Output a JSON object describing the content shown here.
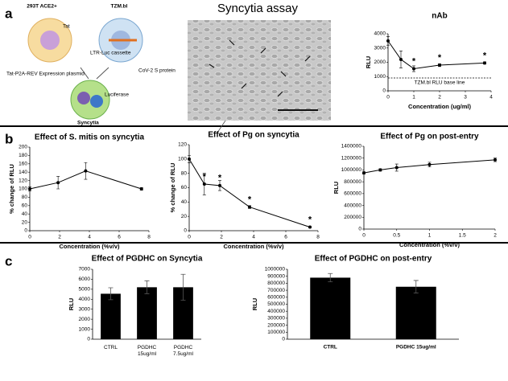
{
  "panels": [
    "a",
    "b",
    "c"
  ],
  "diagram": {
    "cell_1": "293T ACE2+",
    "cell_2": "TZM.bl",
    "tat": "Tat",
    "cassette": "LTR-Luc cassette",
    "plasmid": "Tat-P2A-REV Expression plasmid",
    "spike": "CoV-2 S protein",
    "luciferase": "Luciferase",
    "syncytia": "Syncytia"
  },
  "micrograph_title": "Syncytia assay",
  "chart_data": [
    {
      "type": "line",
      "title": "nAb",
      "x": [
        0,
        0.5,
        1,
        2,
        3.75
      ],
      "values": [
        3500,
        2200,
        1550,
        1800,
        1950
      ],
      "errors": [
        300,
        600,
        200,
        100,
        80
      ],
      "color": "#000000",
      "xlabel": "Concentration (ug/ml)",
      "ylabel": "RLU",
      "xlim": [
        0,
        4
      ],
      "xticks": [
        0,
        1,
        2,
        3,
        4
      ],
      "ylim": [
        0,
        4000
      ],
      "yticks": [
        0,
        1000,
        2000,
        3000,
        4000
      ],
      "baseline": {
        "value": 900,
        "label": "TZM.bl RLU base line"
      },
      "annotations": [
        {
          "text": "*",
          "x": 1,
          "y": 1550
        },
        {
          "text": "*",
          "x": 2,
          "y": 1800
        },
        {
          "text": "*",
          "x": 3.75,
          "y": 1950
        }
      ]
    },
    {
      "type": "line",
      "title": "Effect of S. mitis on syncytia",
      "x": [
        0,
        1.9,
        3.75,
        7.5
      ],
      "values": [
        100,
        115,
        143,
        100
      ],
      "errors": [
        5,
        15,
        20,
        3
      ],
      "color": "#000000",
      "xlabel": "Concentration (%v/v)",
      "ylabel": "% change of RLU",
      "xlim": [
        0,
        8
      ],
      "xticks": [
        0,
        2,
        4,
        6,
        8
      ],
      "ylim": [
        0,
        200
      ],
      "yticks": [
        0,
        20,
        40,
        60,
        80,
        100,
        120,
        140,
        160,
        180,
        200
      ]
    },
    {
      "type": "line",
      "title": "Effect of Pg on syncytia",
      "x": [
        0,
        0.94,
        1.9,
        3.75,
        7.5
      ],
      "values": [
        100,
        65,
        63,
        33,
        5
      ],
      "errors": [
        5,
        15,
        7,
        2,
        1
      ],
      "color": "#000000",
      "xlabel": "Concentration (%v/v)",
      "ylabel": "% change of RLU",
      "xlim": [
        0,
        8
      ],
      "xticks": [
        0,
        2,
        4,
        6,
        8
      ],
      "ylim": [
        0,
        120
      ],
      "yticks": [
        0,
        20,
        40,
        60,
        80,
        100,
        120
      ],
      "annotations": [
        {
          "text": "*",
          "x": 0.94,
          "y": 65
        },
        {
          "text": "*",
          "x": 1.9,
          "y": 63
        },
        {
          "text": "*",
          "x": 3.75,
          "y": 33
        },
        {
          "text": "*",
          "x": 7.5,
          "y": 5
        }
      ]
    },
    {
      "type": "line",
      "title": "Effect of Pg on post-entry",
      "x": [
        0,
        0.25,
        0.5,
        1,
        2
      ],
      "values": [
        950000,
        1000000,
        1040000,
        1090000,
        1170000
      ],
      "errors": [
        20000,
        20000,
        60000,
        40000,
        30000
      ],
      "color": "#000000",
      "xlabel": "Concentration (%v/v)",
      "ylabel": "RLU",
      "xlim": [
        0,
        2
      ],
      "xticks": [
        0,
        0.5,
        1,
        1.5,
        2
      ],
      "ylim": [
        0,
        1400000
      ],
      "yticks": [
        0,
        200000,
        400000,
        600000,
        800000,
        1000000,
        1200000,
        1400000
      ]
    },
    {
      "type": "bar",
      "title": "Effect of PGDHC on Syncytia",
      "categories": [
        "CTRL",
        "PGDHC 15ug/ml",
        "PGDHC 7.5ug/ml"
      ],
      "values": [
        4550,
        5200,
        5200
      ],
      "errors": [
        600,
        650,
        1300
      ],
      "color": "#000000",
      "ylabel": "RLU",
      "ylim": [
        0,
        7000
      ],
      "yticks": [
        0,
        1000,
        2000,
        3000,
        4000,
        5000,
        6000,
        7000
      ]
    },
    {
      "type": "bar",
      "title": "Effect of PGDHC on post-entry",
      "categories": [
        "CTRL",
        "PGDHC 15ug/ml"
      ],
      "values": [
        880000,
        750000
      ],
      "errors": [
        60000,
        90000
      ],
      "color": "#000000",
      "ylabel": "RLU",
      "ylim": [
        0,
        1000000
      ],
      "yticks": [
        0,
        100000,
        200000,
        300000,
        400000,
        500000,
        600000,
        700000,
        800000,
        900000,
        1000000
      ]
    }
  ]
}
